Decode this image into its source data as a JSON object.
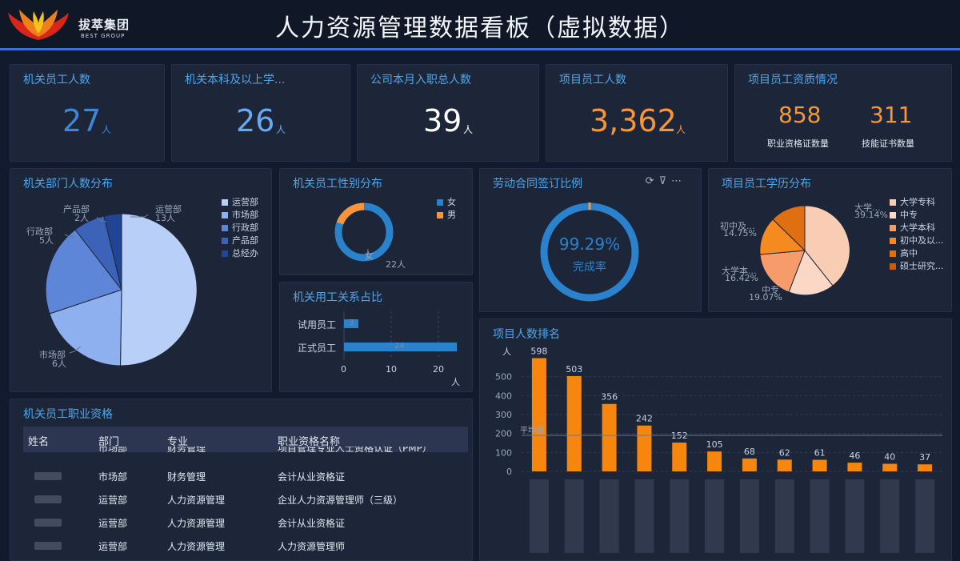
{
  "header": {
    "logo_text": "拔萃集团",
    "logo_sub": "BEST GROUP",
    "title": "人力资源管理数据看板（虚拟数据）"
  },
  "kpis": {
    "staff": {
      "title": "机关员工人数",
      "value": "27",
      "unit": "人",
      "color": "#3f86d6"
    },
    "bachelor": {
      "title": "机关本科及以上学...",
      "value": "26",
      "unit": "人",
      "color": "#69a9f0"
    },
    "onboard": {
      "title": "公司本月入职总人数",
      "value": "39",
      "unit": "人",
      "color": "#ffffff"
    },
    "project": {
      "title": "项目员工人数",
      "value": "3,362",
      "unit": "人",
      "color": "#f7953b"
    }
  },
  "qualification": {
    "title": "项目员工资质情况",
    "cert_value": "858",
    "cert_label": "职业资格证数量",
    "skill_value": "311",
    "skill_label": "技能证书数量"
  },
  "dept_pie": {
    "title": "机关部门人数分布",
    "legend": [
      "运营部",
      "市场部",
      "行政部",
      "产品部",
      "总经办"
    ],
    "labels": {
      "ops": "运营部",
      "ops_v": "13人",
      "mkt": "市场部",
      "mkt_v": "6人",
      "adm": "行政部",
      "adm_v": "5人",
      "prod": "产品部",
      "prod_v": "2人"
    }
  },
  "gender": {
    "title": "机关员工性别分布",
    "legend": [
      "女",
      "男"
    ],
    "label": "女",
    "label_v": "22人"
  },
  "employment": {
    "title": "机关用工关系占比",
    "rows": [
      "试用员工",
      "正式员工"
    ],
    "values": [
      "3",
      "24"
    ],
    "ticks": [
      "0",
      "10",
      "20"
    ],
    "unit": "人"
  },
  "contract": {
    "title": "劳动合同签订比例",
    "percent": "99.29%",
    "label": "完成率"
  },
  "edu_pie": {
    "title": "项目员工学历分布",
    "legend": [
      "大学专科",
      "中专",
      "大学本科",
      "初中及以...",
      "高中",
      "硕士研究..."
    ],
    "labels": {
      "a": "大学...",
      "a_v": "39.14%",
      "b": "初中及...",
      "b_v": "14.75%",
      "c": "大学本...",
      "c_v": "16.42%",
      "d": "中专",
      "d_v": "19.07%"
    }
  },
  "qual_table": {
    "title": "机关员工职业资格",
    "headers": [
      "姓名",
      "部门",
      "专业",
      "职业资格名称"
    ],
    "partial": [
      "市场部",
      "财务管理",
      "项目管理专业人士资格认证（PMP）"
    ],
    "rows": [
      [
        "市场部",
        "财务管理",
        "会计从业资格证"
      ],
      [
        "运营部",
        "人力资源管理",
        "企业人力资源管理师（三级）"
      ],
      [
        "运营部",
        "人力资源管理",
        "会计从业资格证"
      ],
      [
        "运营部",
        "人力资源管理",
        "人力资源管理师"
      ]
    ]
  },
  "ranking": {
    "title": "项目人数排名",
    "unit": "人",
    "avg_label": "平均值",
    "y_ticks": [
      "0",
      "100",
      "200",
      "300",
      "400",
      "500"
    ]
  },
  "chart_data": {
    "type": "bar",
    "title": "项目人数排名",
    "ylabel": "人",
    "values": [
      598,
      503,
      356,
      242,
      152,
      105,
      68,
      62,
      61,
      46,
      40,
      37
    ],
    "ylim": [
      0,
      600
    ],
    "average": 190,
    "color": "#f7860f"
  }
}
